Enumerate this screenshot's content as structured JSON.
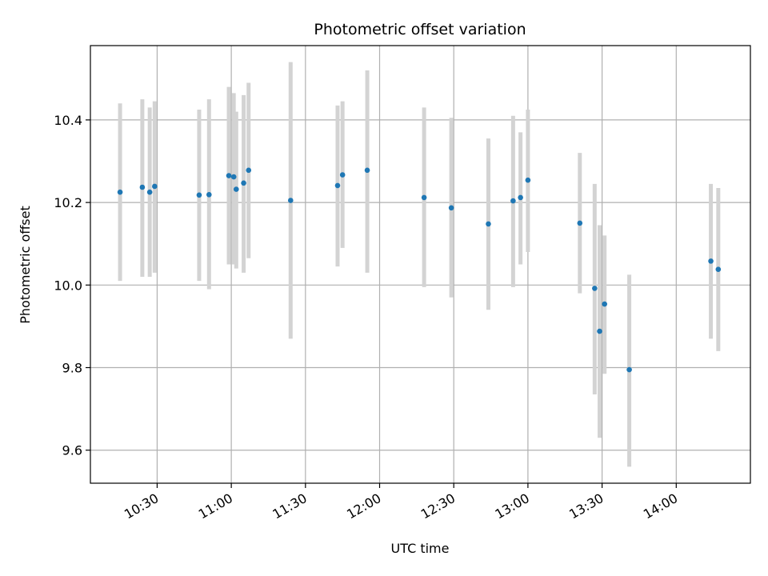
{
  "chart_data": {
    "type": "scatter",
    "title": "Photometric offset variation",
    "xlabel": "UTC time",
    "ylabel": "Photometric offset",
    "xlim": [
      "10:03",
      "14:30"
    ],
    "ylim": [
      9.52,
      10.58
    ],
    "yticks": [
      "9.6",
      "9.8",
      "10.0",
      "10.2",
      "10.4"
    ],
    "xticks": [
      "10:30",
      "11:00",
      "11:30",
      "12:00",
      "12:30",
      "13:00",
      "13:30",
      "14:00"
    ],
    "grid": true,
    "colors": {
      "point": "#1f77b4",
      "errorbar": "#d3d3d3",
      "grid": "#b0b0b0"
    },
    "series": [
      {
        "points": [
          {
            "x": "10:15",
            "y": 10.225,
            "lo": 10.01,
            "hi": 10.44
          },
          {
            "x": "10:24",
            "y": 10.237,
            "lo": 10.02,
            "hi": 10.45
          },
          {
            "x": "10:27",
            "y": 10.225,
            "lo": 10.02,
            "hi": 10.43
          },
          {
            "x": "10:29",
            "y": 10.239,
            "lo": 10.03,
            "hi": 10.445
          },
          {
            "x": "10:47",
            "y": 10.218,
            "lo": 10.01,
            "hi": 10.425
          },
          {
            "x": "10:51",
            "y": 10.219,
            "lo": 9.99,
            "hi": 10.45
          },
          {
            "x": "10:59",
            "y": 10.265,
            "lo": 10.05,
            "hi": 10.48
          },
          {
            "x": "11:01",
            "y": 10.262,
            "lo": 10.05,
            "hi": 10.465
          },
          {
            "x": "11:02",
            "y": 10.232,
            "lo": 10.04,
            "hi": 10.42
          },
          {
            "x": "11:05",
            "y": 10.247,
            "lo": 10.03,
            "hi": 10.46
          },
          {
            "x": "11:07",
            "y": 10.278,
            "lo": 10.065,
            "hi": 10.49
          },
          {
            "x": "11:24",
            "y": 10.205,
            "lo": 9.87,
            "hi": 10.54
          },
          {
            "x": "11:43",
            "y": 10.241,
            "lo": 10.045,
            "hi": 10.435
          },
          {
            "x": "11:45",
            "y": 10.267,
            "lo": 10.09,
            "hi": 10.445
          },
          {
            "x": "11:55",
            "y": 10.278,
            "lo": 10.03,
            "hi": 10.52
          },
          {
            "x": "12:18",
            "y": 10.212,
            "lo": 9.995,
            "hi": 10.43
          },
          {
            "x": "12:29",
            "y": 10.187,
            "lo": 9.97,
            "hi": 10.405
          },
          {
            "x": "12:44",
            "y": 10.148,
            "lo": 9.94,
            "hi": 10.355
          },
          {
            "x": "12:54",
            "y": 10.204,
            "lo": 9.995,
            "hi": 10.41
          },
          {
            "x": "12:57",
            "y": 10.212,
            "lo": 10.05,
            "hi": 10.37
          },
          {
            "x": "13:00",
            "y": 10.254,
            "lo": 10.08,
            "hi": 10.425
          },
          {
            "x": "13:21",
            "y": 10.15,
            "lo": 9.98,
            "hi": 10.32
          },
          {
            "x": "13:27",
            "y": 9.992,
            "lo": 9.735,
            "hi": 10.245
          },
          {
            "x": "13:29",
            "y": 9.888,
            "lo": 9.63,
            "hi": 10.145
          },
          {
            "x": "13:31",
            "y": 9.954,
            "lo": 9.785,
            "hi": 10.12
          },
          {
            "x": "13:41",
            "y": 9.795,
            "lo": 9.56,
            "hi": 10.025
          },
          {
            "x": "14:14",
            "y": 10.058,
            "lo": 9.87,
            "hi": 10.245
          },
          {
            "x": "14:17",
            "y": 10.038,
            "lo": 9.84,
            "hi": 10.235
          }
        ]
      }
    ]
  }
}
